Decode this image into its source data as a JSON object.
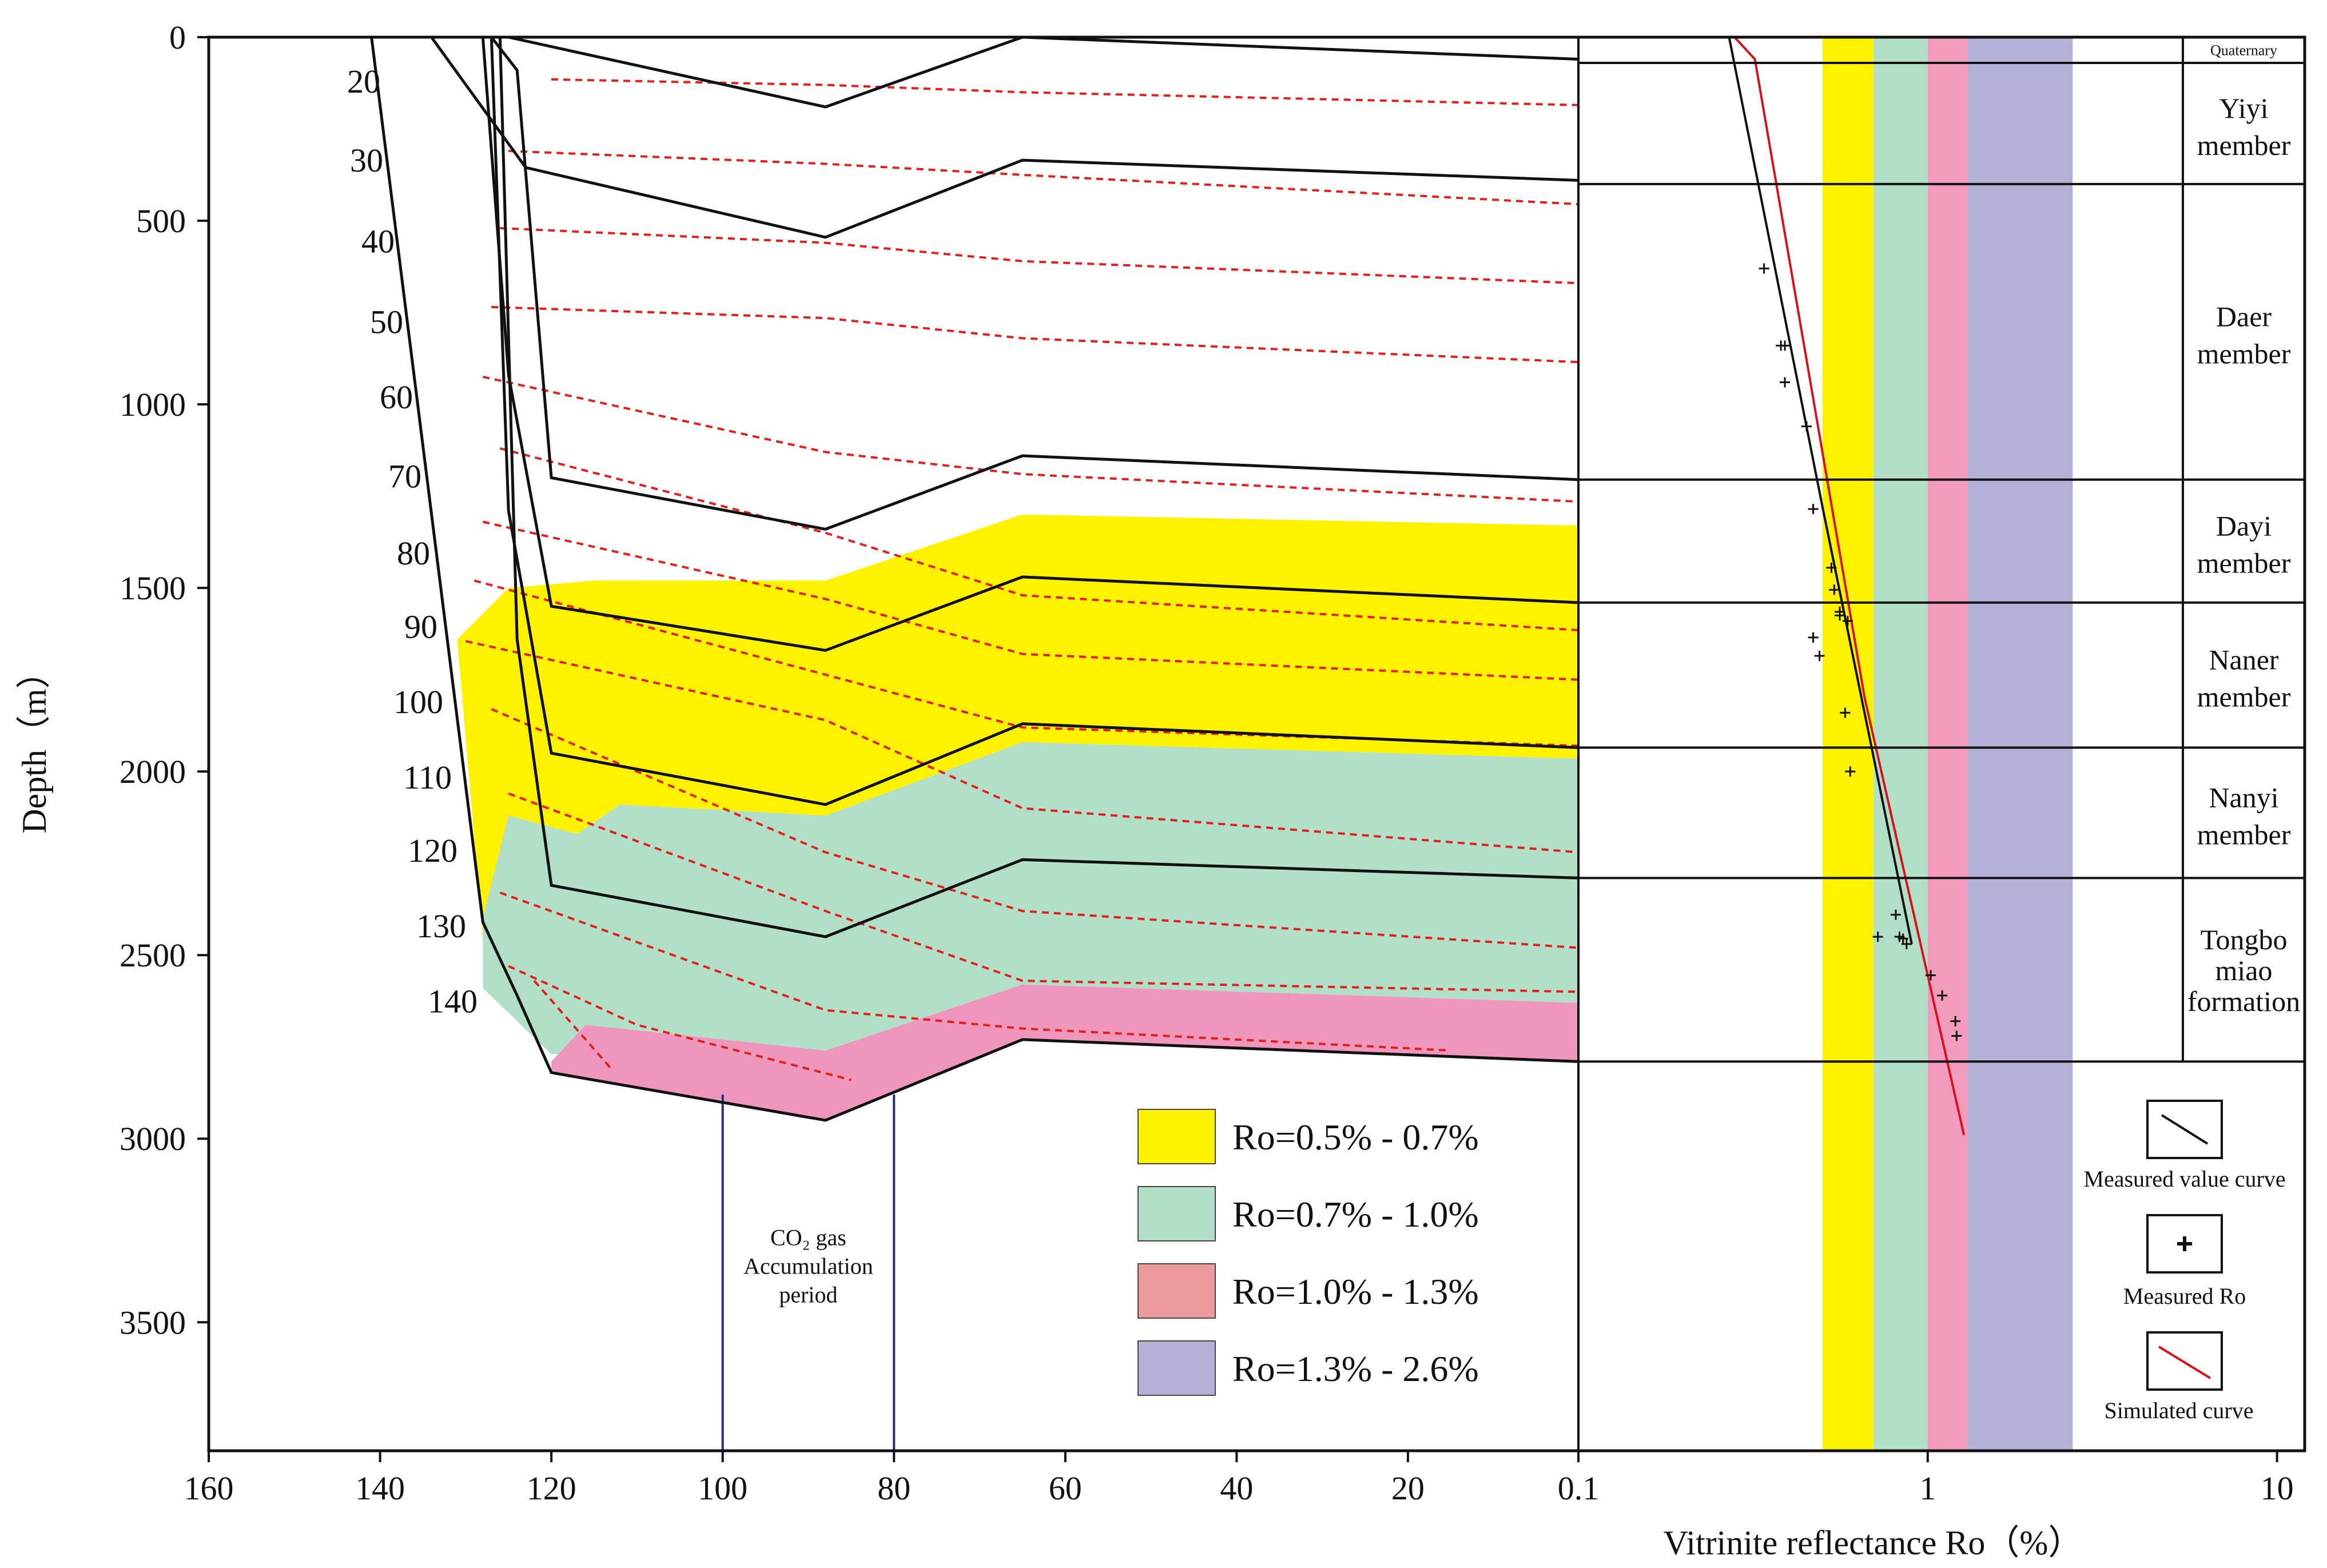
{
  "chart_data": {
    "type": "burial-history-and-vitrinite-reflectance",
    "left_panel": {
      "xlabel": "",
      "ylabel": "Depth（m）",
      "xlim": [
        160,
        0.1
      ],
      "ylim": [
        0,
        3850
      ],
      "x_ticks": [
        {
          "value": 160,
          "label": "160"
        },
        {
          "value": 140,
          "label": "140"
        },
        {
          "value": 120,
          "label": "120"
        },
        {
          "value": 100,
          "label": "100"
        },
        {
          "value": 80,
          "label": "80"
        },
        {
          "value": 60,
          "label": "60"
        },
        {
          "value": 40,
          "label": "40"
        },
        {
          "value": 20,
          "label": "20"
        },
        {
          "value": 0.1,
          "label": "0.1"
        }
      ],
      "y_ticks": [
        {
          "value": 0,
          "label": "0"
        },
        {
          "value": 500,
          "label": "500"
        },
        {
          "value": 1000,
          "label": "1000"
        },
        {
          "value": 1500,
          "label": "1500"
        },
        {
          "value": 2000,
          "label": "2000"
        },
        {
          "value": 2500,
          "label": "2500"
        },
        {
          "value": 3000,
          "label": "3000"
        },
        {
          "value": 3500,
          "label": "3500"
        }
      ],
      "isotherm_labels": [
        {
          "label": "20",
          "depth": 120
        },
        {
          "label": "30",
          "depth": 335
        },
        {
          "label": "40",
          "depth": 555
        },
        {
          "label": "50",
          "depth": 775
        },
        {
          "label": "60",
          "depth": 980
        },
        {
          "label": "70",
          "depth": 1195
        },
        {
          "label": "80",
          "depth": 1405
        },
        {
          "label": "90",
          "depth": 1605
        },
        {
          "label": "100",
          "depth": 1810
        },
        {
          "label": "110",
          "depth": 2015
        },
        {
          "label": "120",
          "depth": 2215
        },
        {
          "label": "130",
          "depth": 2420
        },
        {
          "label": "140",
          "depth": 2625
        }
      ],
      "isotherms": [
        [
          [
            120,
            115
          ],
          [
            88,
            130
          ],
          [
            65,
            150
          ],
          [
            0.1,
            185
          ]
        ],
        [
          [
            125,
            310
          ],
          [
            88,
            345
          ],
          [
            65,
            375
          ],
          [
            0.1,
            455
          ]
        ],
        [
          [
            126,
            520
          ],
          [
            88,
            560
          ],
          [
            65,
            610
          ],
          [
            0.1,
            670
          ]
        ],
        [
          [
            127,
            735
          ],
          [
            88,
            765
          ],
          [
            65,
            820
          ],
          [
            0.1,
            885
          ]
        ],
        [
          [
            128,
            925
          ],
          [
            88,
            1130
          ],
          [
            65,
            1190
          ],
          [
            0.1,
            1265
          ]
        ],
        [
          [
            126,
            1120
          ],
          [
            88,
            1350
          ],
          [
            65,
            1520
          ],
          [
            0.1,
            1615
          ]
        ],
        [
          [
            128,
            1320
          ],
          [
            88,
            1530
          ],
          [
            65,
            1680
          ],
          [
            0.1,
            1750
          ]
        ],
        [
          [
            129,
            1480
          ],
          [
            65,
            1880
          ],
          [
            0.1,
            1930
          ]
        ],
        [
          [
            130,
            1645
          ],
          [
            88,
            1860
          ],
          [
            65,
            2100
          ],
          [
            0.1,
            2220
          ]
        ],
        [
          [
            127,
            1830
          ],
          [
            88,
            2220
          ],
          [
            65,
            2380
          ],
          [
            0.1,
            2480
          ]
        ],
        [
          [
            125,
            2060
          ],
          [
            88,
            2380
          ],
          [
            65,
            2570
          ],
          [
            0.1,
            2600
          ]
        ],
        [
          [
            126,
            2330
          ],
          [
            88,
            2650
          ],
          [
            65,
            2700
          ],
          [
            15,
            2760
          ]
        ],
        [
          [
            125,
            2530
          ],
          [
            110,
            2690
          ],
          [
            85,
            2840
          ]
        ],
        [
          [
            122,
            2570
          ],
          [
            113,
            2810
          ]
        ]
      ],
      "strata_lines": [
        [
          [
            135,
            0
          ],
          [
            125,
            0
          ],
          [
            88,
            190
          ],
          [
            65,
            0
          ],
          [
            0.1,
            60
          ]
        ],
        [
          [
            134,
            0
          ],
          [
            123,
            355
          ],
          [
            88,
            545
          ],
          [
            65,
            335
          ],
          [
            0.1,
            390
          ]
        ],
        [
          [
            130,
            0
          ],
          [
            127,
            0
          ],
          [
            124,
            90
          ],
          [
            120,
            1200
          ],
          [
            88,
            1340
          ],
          [
            65,
            1140
          ],
          [
            0.1,
            1205
          ]
        ],
        [
          [
            128,
            0
          ],
          [
            125,
            920
          ],
          [
            120,
            1550
          ],
          [
            88,
            1670
          ],
          [
            65,
            1470
          ],
          [
            0.1,
            1540
          ]
        ],
        [
          [
            127,
            0
          ],
          [
            125,
            1290
          ],
          [
            120,
            1950
          ],
          [
            88,
            2090
          ],
          [
            65,
            1870
          ],
          [
            0.1,
            1935
          ]
        ],
        [
          [
            126,
            0
          ],
          [
            124,
            1640
          ],
          [
            120,
            2310
          ],
          [
            88,
            2450
          ],
          [
            65,
            2240
          ],
          [
            0.1,
            2290
          ]
        ],
        [
          [
            141,
            0
          ],
          [
            128,
            2410
          ],
          [
            124,
            2610
          ],
          [
            120,
            2820
          ],
          [
            88,
            2950
          ],
          [
            65,
            2730
          ],
          [
            0.1,
            2790
          ]
        ]
      ],
      "maturity_zones": [
        {
          "ro_range": "0.5%-0.7%",
          "zone": [
            [
              131,
              1640
            ],
            [
              125,
              1500
            ],
            [
              115,
              1480
            ],
            [
              100,
              1480
            ],
            [
              88,
              1480
            ],
            [
              65,
              1300
            ],
            [
              0.1,
              1330
            ],
            [
              0.1,
              1965
            ],
            [
              65,
              1920
            ],
            [
              88,
              2120
            ],
            [
              112,
              2090
            ],
            [
              117,
              2170
            ],
            [
              128,
              2450
            ]
          ]
        },
        {
          "ro_range": "0.7%-1.0%",
          "zone": [
            [
              128,
              2400
            ],
            [
              125,
              2120
            ],
            [
              117,
              2170
            ],
            [
              112,
              2090
            ],
            [
              88,
              2120
            ],
            [
              65,
              1920
            ],
            [
              0.1,
              1965
            ],
            [
              0.1,
              2630
            ],
            [
              65,
              2580
            ],
            [
              88,
              2760
            ],
            [
              120,
              2770
            ],
            [
              128,
              2590
            ]
          ]
        },
        {
          "ro_range": "1.0%-1.3%",
          "zone": [
            [
              120,
              2790
            ],
            [
              116,
              2690
            ],
            [
              88,
              2760
            ],
            [
              65,
              2580
            ],
            [
              0.1,
              2630
            ],
            [
              0.1,
              2790
            ],
            [
              65,
              2730
            ],
            [
              88,
              2950
            ],
            [
              120,
              2820
            ]
          ]
        }
      ],
      "accumulation_period_ma": [
        100,
        80
      ],
      "accumulation_label": [
        "CO₂ gas",
        "Accumulation",
        "period"
      ]
    },
    "right_panel": {
      "xlabel": "Vitrinite reflectance Ro（%）",
      "xscale": "log",
      "xlim": [
        0.1,
        12
      ],
      "x_ticks": [
        {
          "value": 0.1,
          "label": "0.1"
        },
        {
          "value": 1,
          "label": "1"
        },
        {
          "value": 10,
          "label": "10"
        }
      ],
      "ro_bands": [
        {
          "from": 0.5,
          "to": 0.7,
          "color": "#fff200"
        },
        {
          "from": 0.7,
          "to": 1.0,
          "color": "#b3dfc9"
        },
        {
          "from": 1.0,
          "to": 1.3,
          "color": "#f29bbd"
        },
        {
          "from": 1.3,
          "to": 2.6,
          "color": "#b5b1d6"
        }
      ],
      "measured_ro": [
        [
          0.34,
          630
        ],
        [
          0.38,
          840
        ],
        [
          0.39,
          840
        ],
        [
          0.39,
          940
        ],
        [
          0.45,
          1060
        ],
        [
          0.47,
          1285
        ],
        [
          0.53,
          1445
        ],
        [
          0.54,
          1505
        ],
        [
          0.56,
          1565
        ],
        [
          0.56,
          1575
        ],
        [
          0.59,
          1590
        ],
        [
          0.47,
          1635
        ],
        [
          0.49,
          1685
        ],
        [
          0.58,
          1840
        ],
        [
          0.6,
          2000
        ],
        [
          0.81,
          2390
        ],
        [
          0.83,
          2450
        ],
        [
          0.85,
          2455
        ],
        [
          0.87,
          2470
        ],
        [
          0.72,
          2450
        ],
        [
          1.02,
          2555
        ],
        [
          1.1,
          2610
        ],
        [
          1.2,
          2680
        ],
        [
          1.21,
          2720
        ]
      ],
      "measured_curve": [
        [
          0.27,
          0
        ],
        [
          0.5,
          1280
        ],
        [
          0.9,
          2470
        ]
      ],
      "simulated_curve": [
        [
          0.28,
          0
        ],
        [
          0.32,
          60
        ],
        [
          0.66,
          1800
        ],
        [
          1.27,
          2990
        ]
      ]
    },
    "stratigraphy": [
      {
        "name": "Quaternary",
        "top": 0,
        "bottom": 70
      },
      {
        "name": "Yiyi member",
        "top": 70,
        "bottom": 400
      },
      {
        "name": "Daer member",
        "top": 400,
        "bottom": 1205
      },
      {
        "name": "Dayi member",
        "top": 1205,
        "bottom": 1540
      },
      {
        "name": "Naner member",
        "top": 1540,
        "bottom": 1935
      },
      {
        "name": "Nanyi member",
        "top": 1935,
        "bottom": 2290
      },
      {
        "name": "Tongbo miao formation",
        "top": 2290,
        "bottom": 2790
      }
    ],
    "legend": [
      {
        "label": "Ro=0.5% - 0.7%",
        "color": "#fff200"
      },
      {
        "label": "Ro=0.7% - 1.0%",
        "color": "#b3dfc9"
      },
      {
        "label": "Ro=1.0% - 1.3%",
        "color": "#ef9a9a"
      },
      {
        "label": "Ro=1.3% - 2.6%",
        "color": "#b5b1d6"
      }
    ],
    "legend_symbols": [
      {
        "label": "Measured value curve"
      },
      {
        "label": "Measured Ro"
      },
      {
        "label": "Simulated curve"
      }
    ]
  }
}
